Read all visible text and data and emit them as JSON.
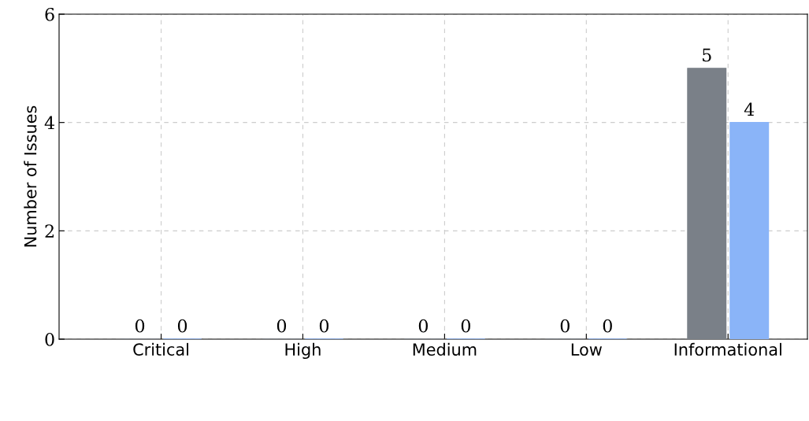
{
  "chart_data": {
    "type": "bar",
    "ylabel": "Number of Issues",
    "categories": [
      "Critical",
      "High",
      "Medium",
      "Low",
      "Informational"
    ],
    "series": [
      {
        "color": "#7a8088",
        "values": [
          0,
          0,
          0,
          0,
          5
        ]
      },
      {
        "color": "#8ab4f8",
        "values": [
          0,
          0,
          0,
          0,
          4
        ]
      }
    ],
    "ylim": [
      0,
      6
    ],
    "yticks": [
      0,
      2,
      4,
      6
    ],
    "grid": true,
    "data_labels": true
  }
}
